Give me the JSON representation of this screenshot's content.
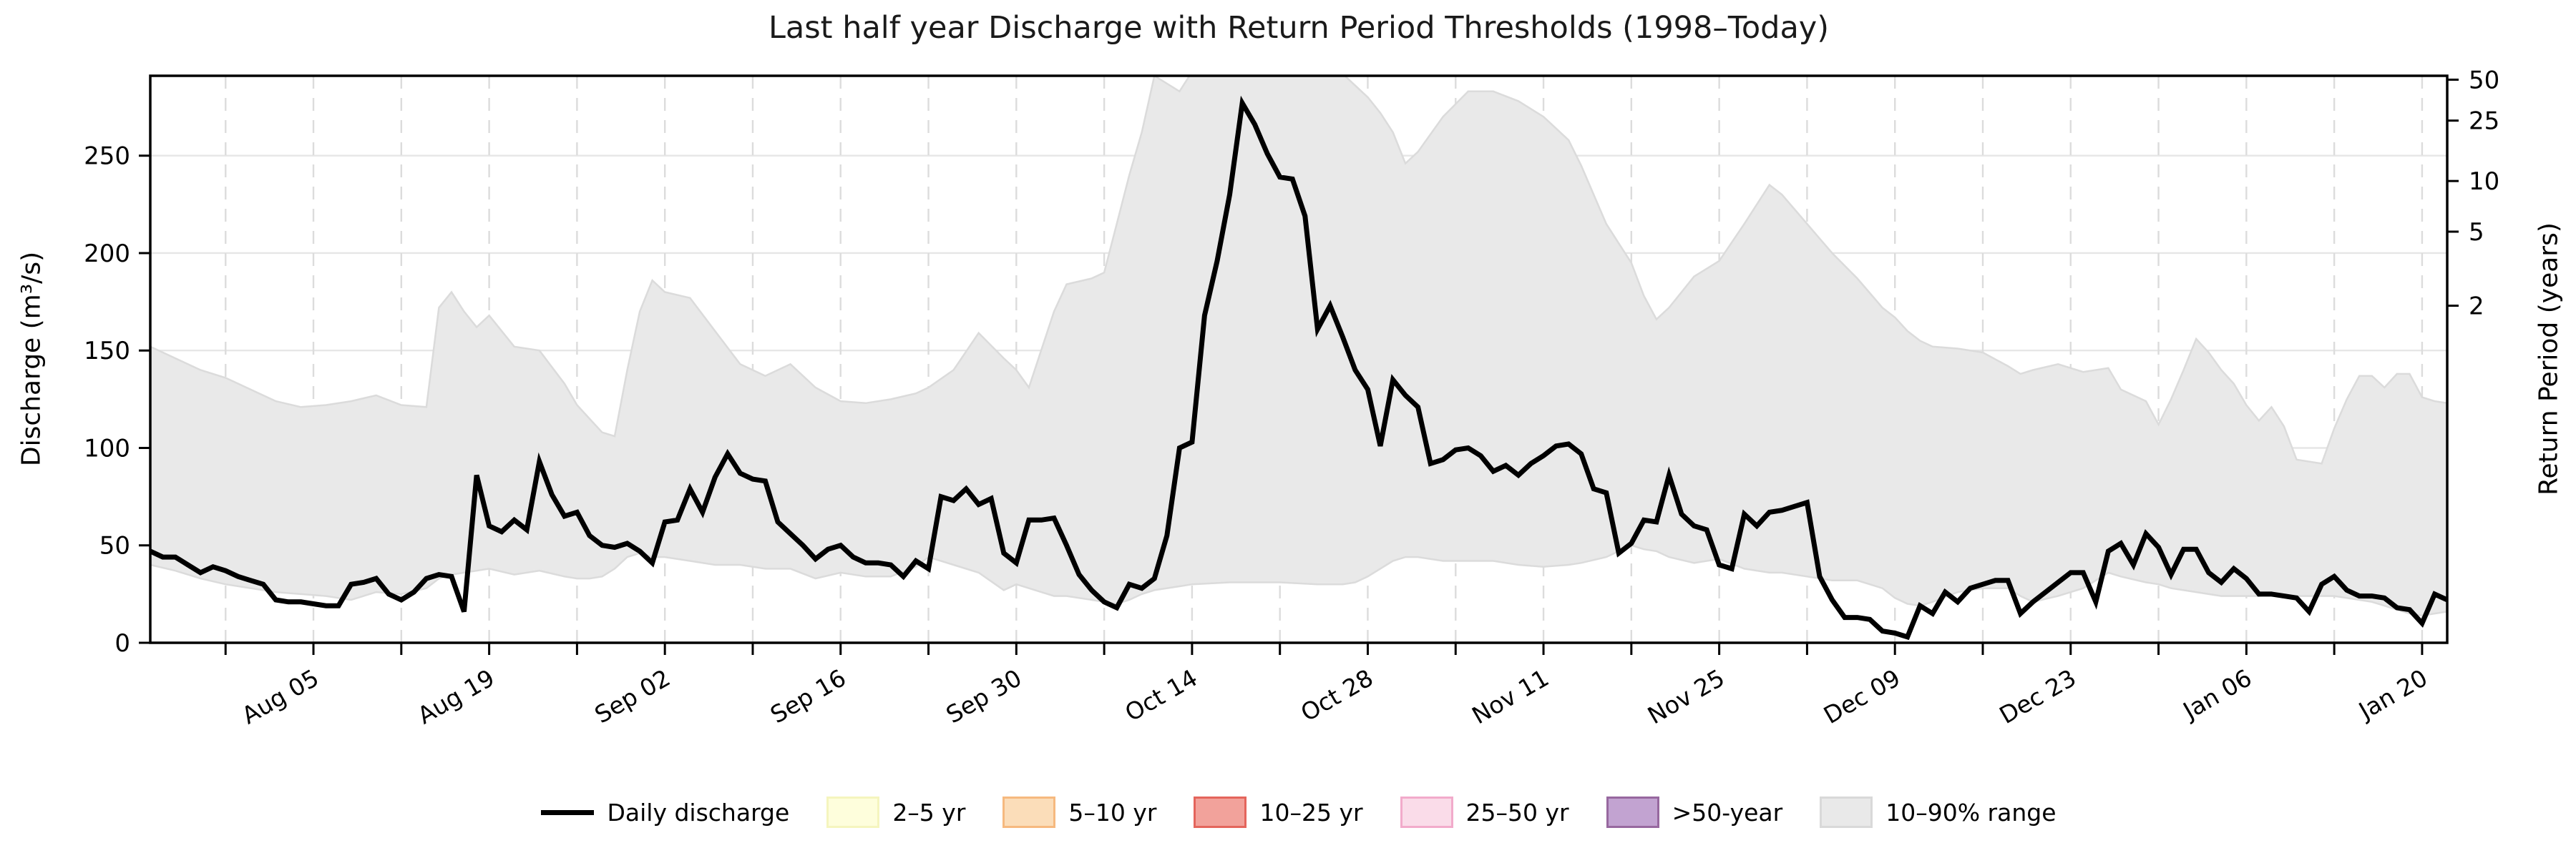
{
  "title": "Last half year Discharge with Return Period Thresholds (1998–Today)",
  "axes": {
    "left_label": "Discharge (m³/s)",
    "right_label": "Return Period (years)"
  },
  "legend": [
    {
      "label": "Daily discharge",
      "swatch": "line",
      "color": "#000000"
    },
    {
      "label": "2–5 yr",
      "swatch": "patch",
      "fill": "#FEFEDC",
      "edge": "#F5F5BE"
    },
    {
      "label": "5–10 yr",
      "swatch": "patch",
      "fill": "#FBDDB9",
      "edge": "#F6B97F"
    },
    {
      "label": "10–25 yr",
      "swatch": "patch",
      "fill": "#F2A29B",
      "edge": "#E4655C"
    },
    {
      "label": "25–50 yr",
      "swatch": "patch",
      "fill": "#FADCE9",
      "edge": "#F2ABCB"
    },
    {
      "label": ">50-year",
      "swatch": "patch",
      "fill": "#C2A3D1",
      "edge": "#97689F"
    },
    {
      "label": "10–90% range",
      "swatch": "patch",
      "fill": "#E9E9E9",
      "edge": "#D9D9D9"
    }
  ],
  "colors": {
    "line": "#000000",
    "band_fill": "#E9E9E9",
    "band_edge": "#DBDBDB",
    "grid_h": "#E6E6E6",
    "grid_v": "#DCDCDC",
    "spine": "#000000",
    "text": "#000000"
  },
  "chart_data": {
    "type": "line",
    "title": "Last half year Discharge with Return Period Thresholds (1998–Today)",
    "xlabel": "",
    "ylabel": "Discharge (m³/s)",
    "y2label": "Return Period (years)",
    "ylim": [
      0,
      291
    ],
    "x_start_date": "Jul 23",
    "x_end_date": "Jan 22",
    "x_days_total": 183,
    "grid": {
      "horizontal": "solid",
      "vertical": "dashed-weekly"
    },
    "legend_position": "bottom-center",
    "y_ticks": [
      0,
      50,
      100,
      150,
      200,
      250
    ],
    "x_major_ticks": [
      {
        "label": "Aug 05",
        "day": 13
      },
      {
        "label": "Aug 19",
        "day": 27
      },
      {
        "label": "Sep 02",
        "day": 41
      },
      {
        "label": "Sep 16",
        "day": 55
      },
      {
        "label": "Sep 30",
        "day": 69
      },
      {
        "label": "Oct 14",
        "day": 83
      },
      {
        "label": "Oct 28",
        "day": 97
      },
      {
        "label": "Nov 11",
        "day": 111
      },
      {
        "label": "Nov 25",
        "day": 125
      },
      {
        "label": "Dec 09",
        "day": 139
      },
      {
        "label": "Dec 23",
        "day": 153
      },
      {
        "label": "Jan 06",
        "day": 167
      },
      {
        "label": "Jan 20",
        "day": 181
      }
    ],
    "x_minor_tick_days": [
      6,
      20,
      34,
      48,
      62,
      76,
      90,
      104,
      118,
      132,
      146,
      160,
      174
    ],
    "right_axis_ticks": [
      {
        "label": "2",
        "discharge": 173
      },
      {
        "label": "5",
        "discharge": 211
      },
      {
        "label": "10",
        "discharge": 237
      },
      {
        "label": "25",
        "discharge": 268
      },
      {
        "label": "50",
        "discharge": 289
      }
    ],
    "series": [
      {
        "name": "Daily discharge",
        "start_day": 0,
        "values": [
          47,
          44,
          44,
          40,
          36,
          39,
          37,
          34,
          32,
          30,
          22,
          21,
          21,
          20,
          19,
          19,
          30,
          31,
          33,
          25,
          22,
          26,
          33,
          35,
          34,
          16,
          86,
          60,
          57,
          63,
          58,
          93,
          76,
          65,
          67,
          55,
          50,
          49,
          51,
          47,
          41,
          62,
          63,
          79,
          67,
          85,
          97,
          87,
          84,
          83,
          62,
          56,
          50,
          43,
          48,
          50,
          44,
          41,
          41,
          40,
          34,
          42,
          38,
          75,
          73,
          79,
          71,
          74,
          46,
          41,
          63,
          63,
          64,
          50,
          35,
          27,
          21,
          18,
          30,
          28,
          33,
          55,
          100,
          103,
          168,
          196,
          230,
          277,
          266,
          251,
          239,
          238,
          219,
          161,
          173,
          157,
          140,
          130,
          101,
          135,
          127,
          121,
          92,
          94,
          99,
          100,
          96,
          88,
          91,
          86,
          92,
          96,
          101,
          102,
          97,
          79,
          77,
          46,
          51,
          63,
          62,
          86,
          66,
          60,
          58,
          40,
          38,
          66,
          60,
          67,
          68,
          70,
          72,
          34,
          22,
          13,
          13,
          12,
          6,
          5,
          3,
          19,
          15,
          26,
          21,
          28,
          30,
          32,
          32,
          15,
          21,
          26,
          31,
          36,
          36,
          21,
          47,
          51,
          40,
          56,
          49,
          35,
          48,
          48,
          36,
          31,
          38,
          33,
          25,
          25,
          24,
          23,
          16,
          30,
          34,
          27,
          24,
          24,
          23,
          18,
          17,
          10,
          25,
          22
        ]
      }
    ],
    "band": {
      "name": "10–90% range",
      "description": "historical 10th–90th percentile envelope, points are [day, lower, upper]",
      "points": [
        [
          0,
          40,
          152
        ],
        [
          2,
          37,
          146
        ],
        [
          4,
          33,
          140
        ],
        [
          6,
          30,
          136
        ],
        [
          8,
          28,
          130
        ],
        [
          10,
          26,
          124
        ],
        [
          12,
          25,
          121
        ],
        [
          14,
          24,
          122
        ],
        [
          16,
          22,
          124
        ],
        [
          18,
          26,
          127
        ],
        [
          20,
          25,
          122
        ],
        [
          22,
          28,
          121
        ],
        [
          23,
          33,
          172
        ],
        [
          24,
          35,
          180
        ],
        [
          25,
          36,
          170
        ],
        [
          26,
          37,
          162
        ],
        [
          27,
          38,
          168
        ],
        [
          29,
          35,
          152
        ],
        [
          31,
          37,
          150
        ],
        [
          33,
          34,
          133
        ],
        [
          34,
          33,
          122
        ],
        [
          35,
          33,
          115
        ],
        [
          36,
          34,
          108
        ],
        [
          37,
          38,
          106
        ],
        [
          38,
          44,
          140
        ],
        [
          39,
          46,
          170
        ],
        [
          40,
          44,
          186
        ],
        [
          41,
          44,
          180
        ],
        [
          43,
          42,
          177
        ],
        [
          45,
          40,
          160
        ],
        [
          47,
          40,
          143
        ],
        [
          49,
          38,
          137
        ],
        [
          51,
          38,
          143
        ],
        [
          53,
          33,
          131
        ],
        [
          55,
          36,
          124
        ],
        [
          57,
          34,
          123
        ],
        [
          59,
          34,
          125
        ],
        [
          61,
          39,
          128
        ],
        [
          62,
          44,
          131
        ],
        [
          64,
          40,
          140
        ],
        [
          66,
          36,
          159
        ],
        [
          68,
          27,
          146
        ],
        [
          69,
          30,
          140
        ],
        [
          70,
          28,
          131
        ],
        [
          72,
          24,
          170
        ],
        [
          73,
          24,
          184
        ],
        [
          75,
          22,
          187
        ],
        [
          76,
          21,
          190
        ],
        [
          77,
          20,
          215
        ],
        [
          78,
          22,
          240
        ],
        [
          79,
          25,
          262
        ],
        [
          80,
          27,
          291
        ],
        [
          82,
          29,
          283
        ],
        [
          83,
          30,
          293
        ],
        [
          86,
          31,
          298
        ],
        [
          90,
          31,
          298
        ],
        [
          93,
          30,
          298
        ],
        [
          95,
          30,
          292
        ],
        [
          96,
          31,
          286
        ],
        [
          97,
          34,
          280
        ],
        [
          98,
          38,
          272
        ],
        [
          99,
          42,
          262
        ],
        [
          100,
          44,
          246
        ],
        [
          101,
          44,
          252
        ],
        [
          103,
          42,
          270
        ],
        [
          105,
          42,
          283
        ],
        [
          107,
          42,
          283
        ],
        [
          109,
          40,
          278
        ],
        [
          111,
          39,
          270
        ],
        [
          113,
          40,
          258
        ],
        [
          114,
          41,
          245
        ],
        [
          116,
          44,
          215
        ],
        [
          117,
          47,
          205
        ],
        [
          118,
          50,
          195
        ],
        [
          119,
          48,
          178
        ],
        [
          120,
          47,
          166
        ],
        [
          121,
          44,
          172
        ],
        [
          123,
          41,
          188
        ],
        [
          125,
          43,
          196
        ],
        [
          127,
          38,
          215
        ],
        [
          129,
          36,
          235
        ],
        [
          130,
          36,
          230
        ],
        [
          132,
          34,
          215
        ],
        [
          134,
          32,
          200
        ],
        [
          136,
          32,
          187
        ],
        [
          138,
          28,
          172
        ],
        [
          139,
          23,
          167
        ],
        [
          140,
          20,
          160
        ],
        [
          141,
          19,
          155
        ],
        [
          142,
          21,
          152
        ],
        [
          144,
          26,
          151
        ],
        [
          146,
          28,
          149
        ],
        [
          148,
          28,
          142
        ],
        [
          149,
          24,
          138
        ],
        [
          150,
          21,
          140
        ],
        [
          152,
          24,
          143
        ],
        [
          154,
          28,
          139
        ],
        [
          156,
          36,
          141
        ],
        [
          157,
          34,
          130
        ],
        [
          159,
          31,
          124
        ],
        [
          160,
          30,
          112
        ],
        [
          161,
          28,
          125
        ],
        [
          162,
          27,
          140
        ],
        [
          163,
          26,
          156
        ],
        [
          164,
          25,
          149
        ],
        [
          165,
          24,
          140
        ],
        [
          166,
          24,
          133
        ],
        [
          167,
          24,
          122
        ],
        [
          168,
          24,
          114
        ],
        [
          169,
          25,
          121
        ],
        [
          170,
          24,
          111
        ],
        [
          171,
          24,
          94
        ],
        [
          173,
          24,
          92
        ],
        [
          174,
          24,
          110
        ],
        [
          175,
          23,
          125
        ],
        [
          176,
          22,
          137
        ],
        [
          177,
          21,
          137
        ],
        [
          178,
          19,
          131
        ],
        [
          179,
          17,
          138
        ],
        [
          180,
          15,
          138
        ],
        [
          181,
          14,
          126
        ],
        [
          182,
          15,
          124
        ],
        [
          183,
          16,
          123
        ]
      ]
    }
  }
}
